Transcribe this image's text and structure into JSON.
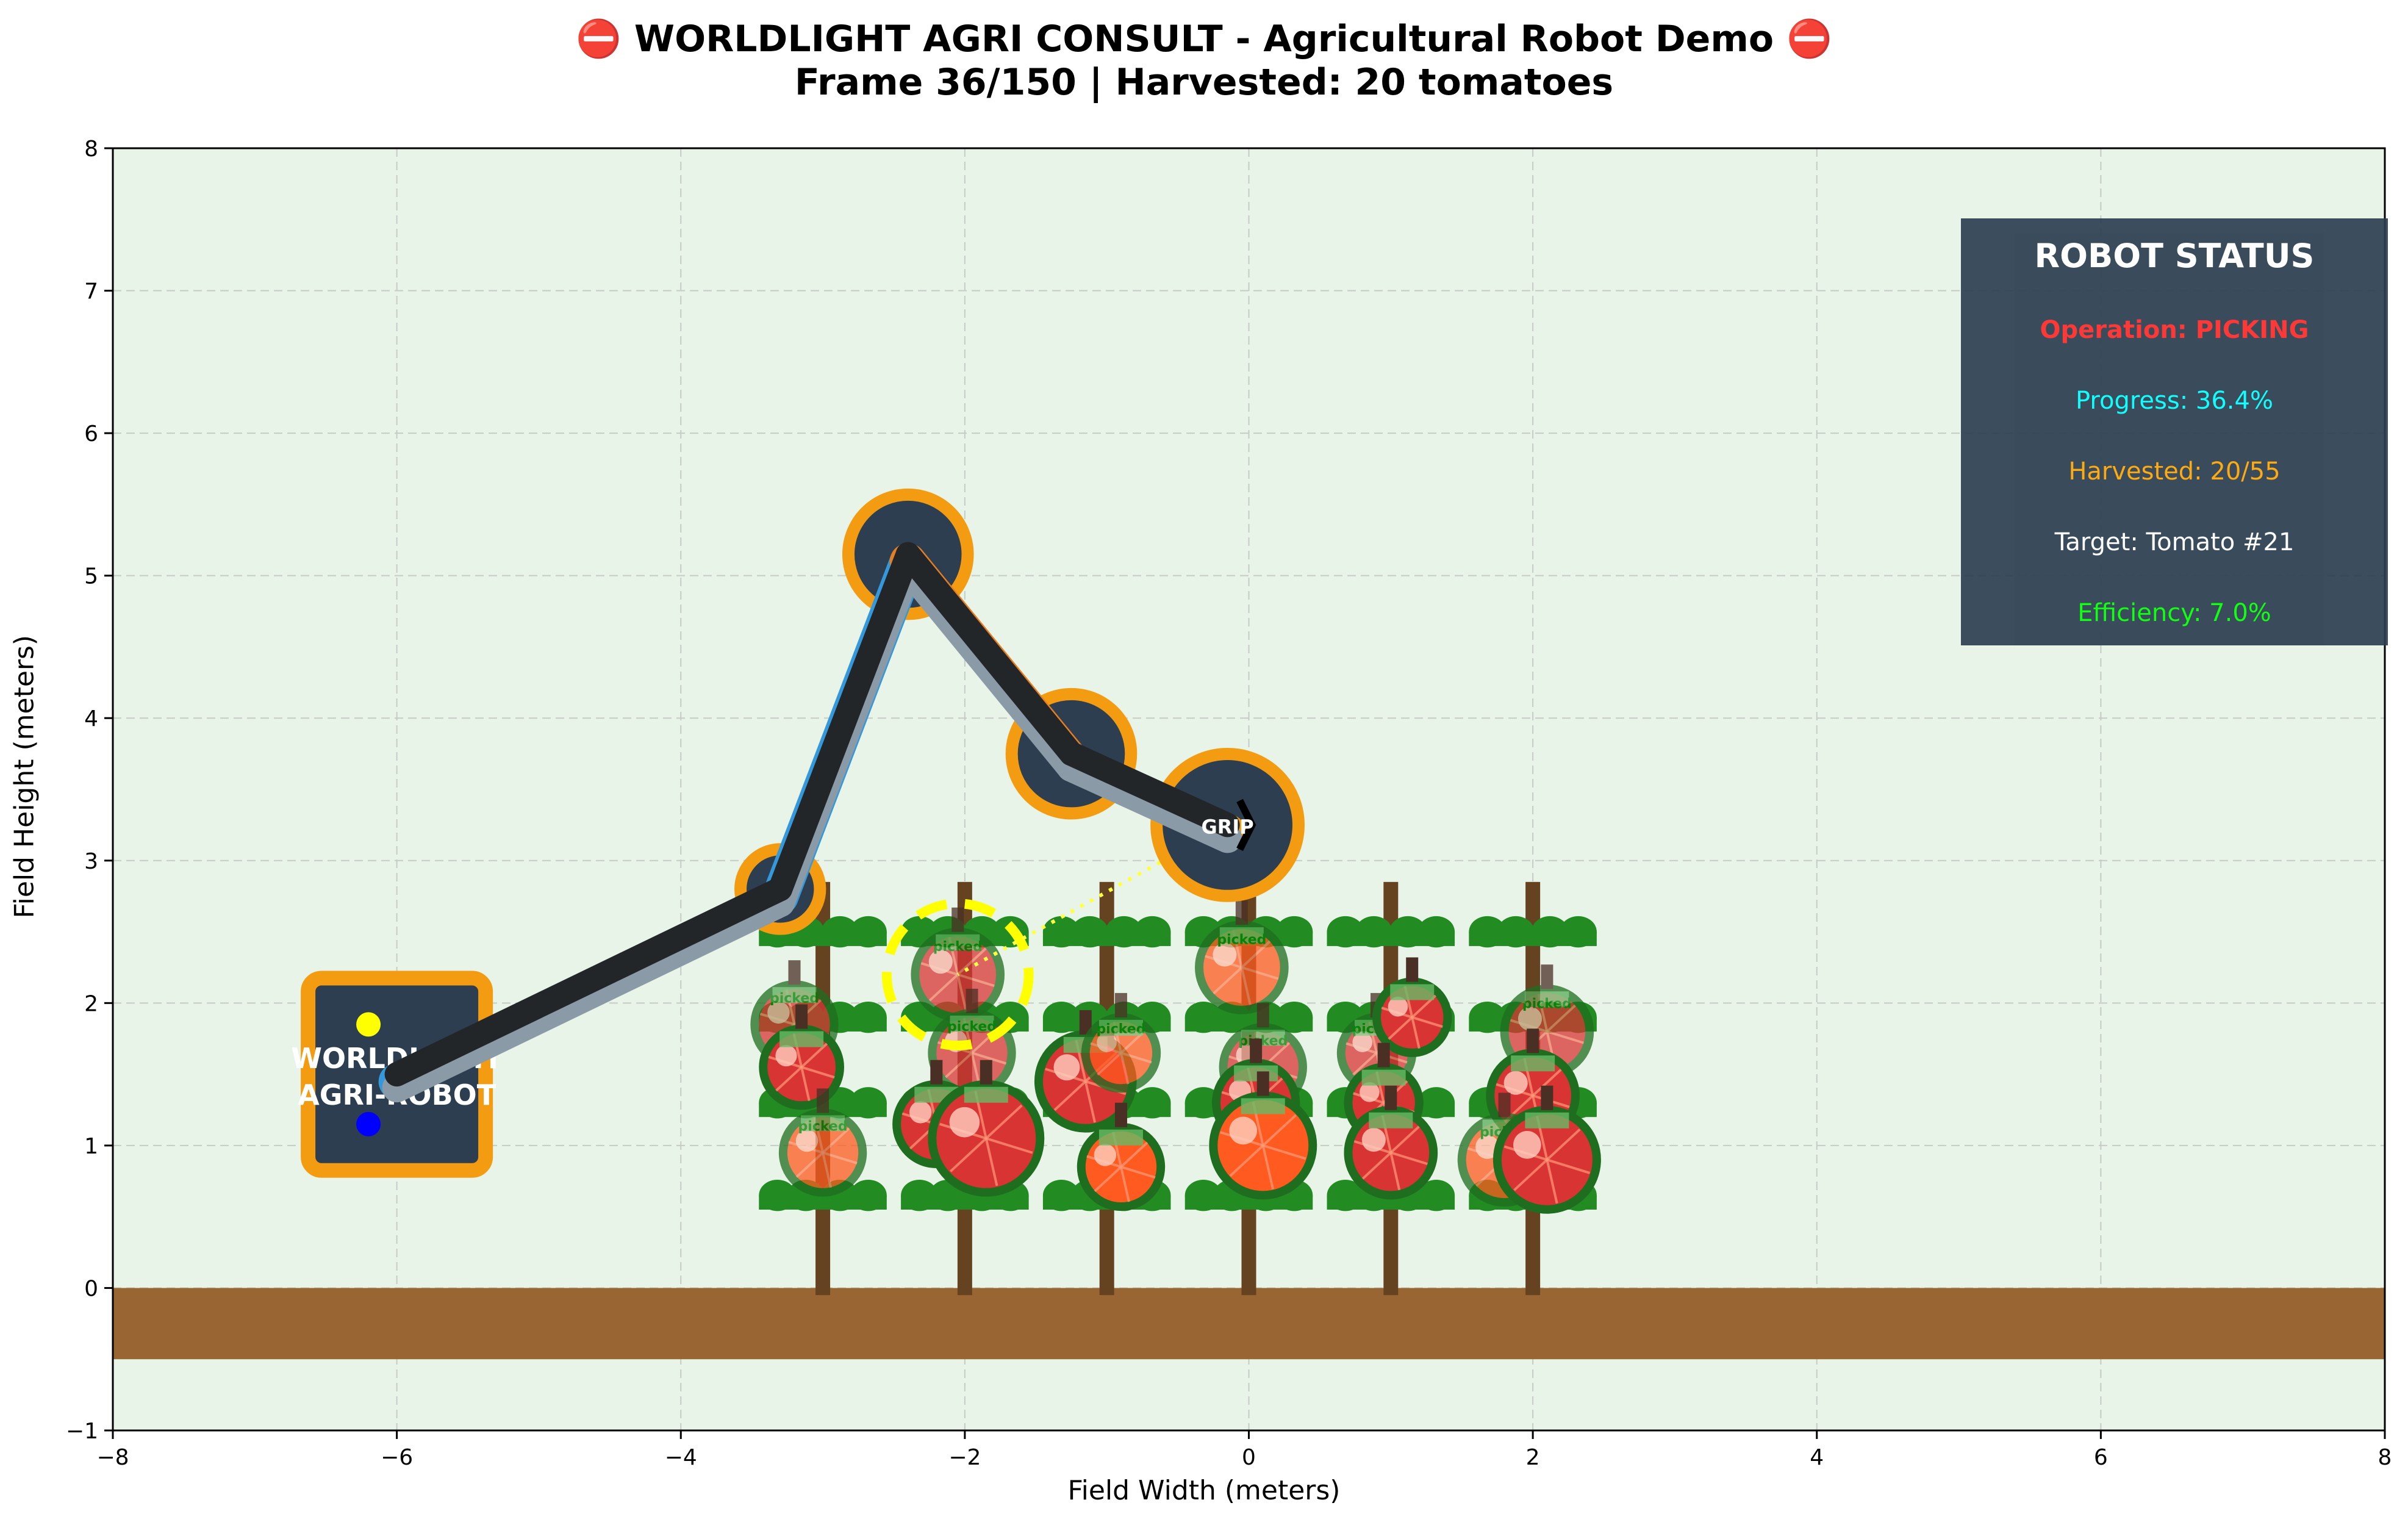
{
  "title": {
    "line1": "⛔ WORLDLIGHT AGRI CONSULT - Agricultural Robot Demo ⛔",
    "line2": "Frame 36/150 | Harvested: 20 tomatoes"
  },
  "chart_data": {
    "type": "scatter",
    "xlabel": "Field Width (meters)",
    "ylabel": "Field Height (meters)",
    "xlim": [
      -8,
      8
    ],
    "ylim": [
      -1,
      8
    ],
    "x_ticks": [
      -8,
      -6,
      -4,
      -2,
      0,
      2,
      4,
      6,
      8
    ],
    "y_ticks": [
      -1,
      0,
      1,
      2,
      3,
      4,
      5,
      6,
      7,
      8
    ],
    "grid": true,
    "background_color": "#e8f4e8",
    "ground": {
      "y_top": 0,
      "y_bottom": -0.5,
      "color": "#996633"
    },
    "robot_base": {
      "x": -6,
      "y": 1.5,
      "label_line1": "WORLDLIGHT",
      "label_line2": "AGRI-ROBOT",
      "fill": "#2c3e50",
      "border": "#f39c12"
    },
    "arm_joints": [
      {
        "x": -6,
        "y": 1.5
      },
      {
        "x": -3.3,
        "y": 2.8
      },
      {
        "x": -2.4,
        "y": 5.15
      },
      {
        "x": -1.25,
        "y": 3.75
      },
      {
        "x": -0.15,
        "y": 3.25
      }
    ],
    "gripper": {
      "x": -0.15,
      "y": 3.25,
      "label": "GRIP"
    },
    "target": {
      "x": -2.05,
      "y": 2.2
    },
    "plants_x": [
      -3,
      -2,
      -1,
      0,
      1,
      2
    ],
    "plant_top": 2.85,
    "tomatoes": [
      {
        "x": -3.2,
        "y": 1.85,
        "r": 0.28,
        "ripe": true,
        "picked": true
      },
      {
        "x": -3.15,
        "y": 1.55,
        "r": 0.27,
        "ripe": true,
        "picked": false
      },
      {
        "x": -3.0,
        "y": 0.95,
        "r": 0.28,
        "ripe": false,
        "picked": true
      },
      {
        "x": -2.05,
        "y": 2.2,
        "r": 0.3,
        "ripe": true,
        "picked": true
      },
      {
        "x": -1.95,
        "y": 1.65,
        "r": 0.28,
        "ripe": true,
        "picked": true
      },
      {
        "x": -2.2,
        "y": 1.15,
        "r": 0.28,
        "ripe": true,
        "picked": false
      },
      {
        "x": -1.85,
        "y": 1.05,
        "r": 0.38,
        "ripe": true,
        "picked": false
      },
      {
        "x": -1.15,
        "y": 1.45,
        "r": 0.33,
        "ripe": true,
        "picked": false
      },
      {
        "x": -0.9,
        "y": 1.65,
        "r": 0.25,
        "ripe": false,
        "picked": true
      },
      {
        "x": -0.9,
        "y": 0.85,
        "r": 0.28,
        "ripe": false,
        "picked": false
      },
      {
        "x": -0.05,
        "y": 2.25,
        "r": 0.3,
        "ripe": false,
        "picked": true
      },
      {
        "x": 0.1,
        "y": 1.55,
        "r": 0.28,
        "ripe": true,
        "picked": true
      },
      {
        "x": 0.05,
        "y": 1.3,
        "r": 0.28,
        "ripe": true,
        "picked": false
      },
      {
        "x": 0.1,
        "y": 1.0,
        "r": 0.35,
        "ripe": false,
        "picked": false
      },
      {
        "x": 0.9,
        "y": 1.65,
        "r": 0.25,
        "ripe": true,
        "picked": true
      },
      {
        "x": 1.15,
        "y": 1.9,
        "r": 0.25,
        "ripe": true,
        "picked": false
      },
      {
        "x": 0.95,
        "y": 1.3,
        "r": 0.25,
        "ripe": true,
        "picked": false
      },
      {
        "x": 1.0,
        "y": 0.95,
        "r": 0.3,
        "ripe": true,
        "picked": false
      },
      {
        "x": 2.1,
        "y": 1.8,
        "r": 0.3,
        "ripe": true,
        "picked": true
      },
      {
        "x": 2.0,
        "y": 1.35,
        "r": 0.3,
        "ripe": true,
        "picked": false
      },
      {
        "x": 1.8,
        "y": 0.9,
        "r": 0.3,
        "ripe": false,
        "picked": true
      },
      {
        "x": 2.1,
        "y": 0.9,
        "r": 0.35,
        "ripe": true,
        "picked": false
      }
    ],
    "picked_label": "picked"
  },
  "status": {
    "title": "ROBOT STATUS",
    "operation": "Operation: PICKING",
    "progress": "Progress: 36.4%",
    "harvested": "Harvested: 20/55",
    "target": "Target: Tomato #21",
    "efficiency": "Efficiency: 7.0%",
    "colors": {
      "operation": "#ff2a2a",
      "progress": "#00ffff",
      "harvested": "#ffa500",
      "efficiency": "#00ff00"
    }
  }
}
